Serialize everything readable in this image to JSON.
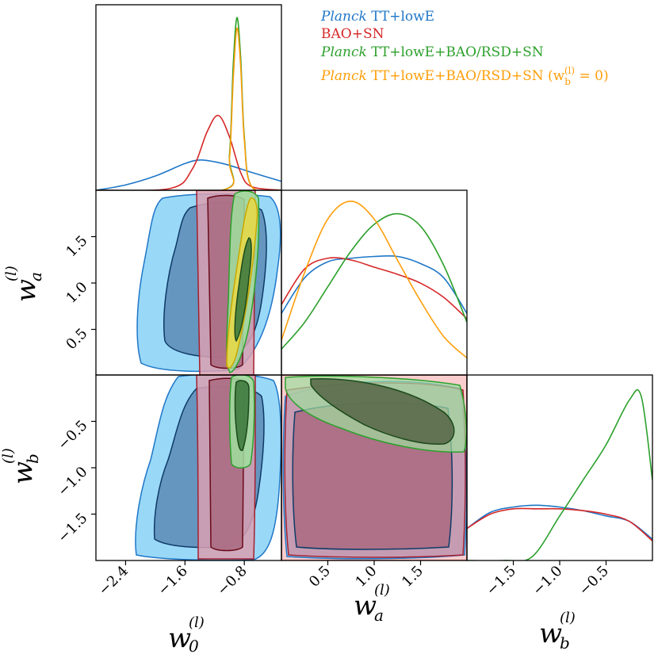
{
  "colors": {
    "planck": "#1f77c7",
    "bao_sn": "#d62728",
    "combined": "#2ca02c",
    "combined_wb0": "#ff9e0a",
    "planck_fill_outer": "#8fd4f7",
    "planck_fill_inner": "#5f8fb8",
    "bao_fill_outer": "#d9a0b2",
    "bao_fill_inner": "#a96a80",
    "comb_fill_outer": "#9fe09f",
    "comb_fill_inner": "#3f7a3f",
    "yellow_fill": "#e6d84a"
  },
  "legend": [
    {
      "italic": "Planck",
      "text": " TT+lowE",
      "color": "#1f77c7"
    },
    {
      "italic": "",
      "text": "BAO+SN",
      "color": "#d62728"
    },
    {
      "italic": "Planck",
      "text": " TT+lowE+BAO/RSD+SN",
      "color": "#2ca02c"
    },
    {
      "italic": "Planck",
      "text": " TT+lowE+BAO/RSD+SN (w",
      "sub": "b",
      "sup": "(l)",
      "tail": " = 0)",
      "color": "#ff9e0a"
    }
  ],
  "axes": {
    "w0": {
      "label": "w",
      "sub": "0",
      "sup": "(l)",
      "range": [
        -2.8,
        -0.3
      ],
      "ticks": [
        -2.4,
        -1.6,
        -0.8
      ],
      "tick_labels": [
        "−2.4",
        "−1.6",
        "−0.8"
      ]
    },
    "wa": {
      "label": "w",
      "sub": "a",
      "sup": "(l)",
      "range": [
        0.0,
        2.0
      ],
      "ticks": [
        0.5,
        1.0,
        1.5
      ],
      "tick_labels": [
        "0.5",
        "1.0",
        "1.5"
      ]
    },
    "wb": {
      "label": "w",
      "sub": "b",
      "sup": "(l)",
      "range": [
        -2.0,
        0.0
      ],
      "ticks": [
        -1.5,
        -1.0,
        -0.5
      ],
      "tick_labels": [
        "−1.5",
        "−1.0",
        "−0.5"
      ]
    }
  },
  "chart_data": {
    "type": "triangle-plot",
    "parameters": [
      "w0",
      "wa",
      "wb"
    ],
    "marginals": {
      "w0": [
        {
          "series": "Planck TT+lowE",
          "x": [
            -2.8,
            -2.4,
            -2.0,
            -1.6,
            -1.4,
            -1.2,
            -1.0,
            -0.7,
            -0.3
          ],
          "y": [
            0.0,
            0.03,
            0.08,
            0.15,
            0.17,
            0.16,
            0.14,
            0.1,
            0.05
          ]
        },
        {
          "series": "BAO+SN",
          "x": [
            -2.8,
            -1.8,
            -1.5,
            -1.3,
            -1.15,
            -1.0,
            -0.85,
            -0.7,
            -0.3
          ],
          "y": [
            0.0,
            0.01,
            0.12,
            0.33,
            0.42,
            0.3,
            0.1,
            0.02,
            0.0
          ]
        },
        {
          "series": "Planck TT+lowE+BAO/RSD+SN",
          "x": [
            -2.8,
            -1.1,
            -1.0,
            -0.95,
            -0.9,
            -0.85,
            -0.8,
            -0.7,
            -0.3
          ],
          "y": [
            0.0,
            0.0,
            0.2,
            0.7,
            0.97,
            0.75,
            0.3,
            0.02,
            0.0
          ]
        },
        {
          "series": "Planck TT+lowE+BAO/RSD+SN (w_b^(l)=0)",
          "x": [
            -2.8,
            -1.1,
            -1.0,
            -0.95,
            -0.9,
            -0.85,
            -0.8,
            -0.7,
            -0.3
          ],
          "y": [
            0.0,
            0.0,
            0.18,
            0.62,
            0.91,
            0.7,
            0.28,
            0.02,
            0.0
          ]
        }
      ],
      "wa": [
        {
          "series": "Planck TT+lowE",
          "x": [
            0.0,
            0.25,
            0.5,
            0.75,
            1.0,
            1.25,
            1.5,
            1.75,
            2.0
          ],
          "y": [
            0.35,
            0.55,
            0.64,
            0.66,
            0.67,
            0.67,
            0.63,
            0.55,
            0.35
          ]
        },
        {
          "series": "BAO+SN",
          "x": [
            0.0,
            0.25,
            0.5,
            0.75,
            1.0,
            1.25,
            1.5,
            1.75,
            2.0
          ],
          "y": [
            0.4,
            0.6,
            0.66,
            0.65,
            0.61,
            0.57,
            0.52,
            0.44,
            0.32
          ]
        },
        {
          "series": "Planck TT+lowE+BAO/RSD+SN",
          "x": [
            0.0,
            0.25,
            0.5,
            0.75,
            1.0,
            1.25,
            1.5,
            1.75,
            2.0
          ],
          "y": [
            0.15,
            0.3,
            0.5,
            0.7,
            0.85,
            0.91,
            0.84,
            0.62,
            0.3
          ]
        },
        {
          "series": "Planck TT+lowE+BAO/RSD+SN (w_b^(l)=0)",
          "x": [
            0.0,
            0.25,
            0.5,
            0.75,
            1.0,
            1.25,
            1.5,
            1.75,
            2.0
          ],
          "y": [
            0.2,
            0.58,
            0.88,
            0.98,
            0.88,
            0.65,
            0.42,
            0.22,
            0.1
          ]
        }
      ],
      "wb": [
        {
          "series": "Planck TT+lowE",
          "x": [
            -2.0,
            -1.75,
            -1.5,
            -1.25,
            -1.0,
            -0.75,
            -0.5,
            -0.25,
            0.0
          ],
          "y": [
            0.18,
            0.27,
            0.3,
            0.31,
            0.3,
            0.28,
            0.25,
            0.22,
            0.12
          ]
        },
        {
          "series": "BAO+SN",
          "x": [
            -2.0,
            -1.75,
            -1.5,
            -1.25,
            -1.0,
            -0.75,
            -0.5,
            -0.25,
            0.0
          ],
          "y": [
            0.18,
            0.26,
            0.29,
            0.29,
            0.29,
            0.28,
            0.26,
            0.22,
            0.11
          ]
        },
        {
          "series": "Planck TT+lowE+BAO/RSD+SN",
          "x": [
            -2.0,
            -1.6,
            -1.3,
            -1.0,
            -0.75,
            -0.5,
            -0.25,
            -0.12,
            0.0
          ],
          "y": [
            0.0,
            0.0,
            0.02,
            0.25,
            0.45,
            0.65,
            0.9,
            0.92,
            0.45
          ]
        }
      ]
    },
    "contours_description": "68% and 95% credible regions for (w0,wa), (w0,wb), (wa,wb) pairs for each dataset"
  }
}
